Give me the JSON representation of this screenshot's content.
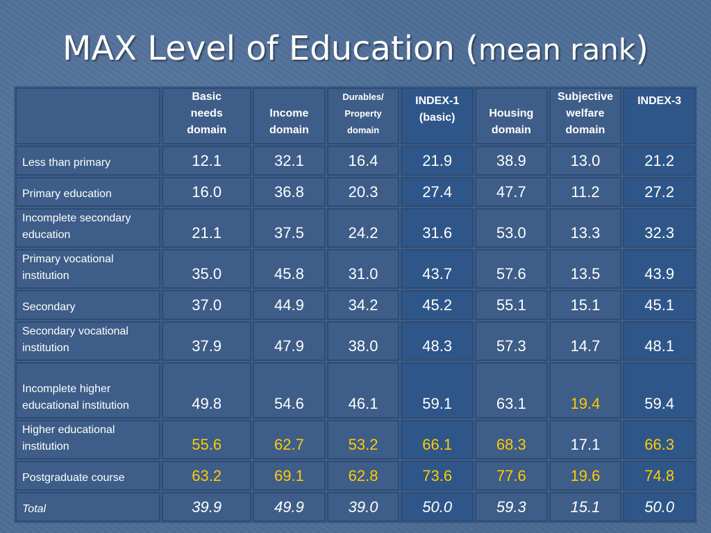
{
  "slide": {
    "title_main": "MAX Level of Education (",
    "title_sub": "mean rank",
    "title_close": ")"
  },
  "table": {
    "headers": [
      {
        "lines": [
          "Basic",
          "needs",
          "domain"
        ],
        "small": false,
        "index": false
      },
      {
        "lines": [
          "Income",
          "domain"
        ],
        "small": false,
        "index": false
      },
      {
        "lines": [
          "Durables/",
          "Property",
          "domain"
        ],
        "small": true,
        "index": false
      },
      {
        "lines": [
          "INDEX-1",
          "(basic)"
        ],
        "small": false,
        "index": true
      },
      {
        "lines": [
          "Housing",
          "domain"
        ],
        "small": false,
        "index": false
      },
      {
        "lines": [
          "Subjective",
          "welfare",
          "domain"
        ],
        "small": false,
        "index": false
      },
      {
        "lines": [
          "INDEX-3"
        ],
        "small": false,
        "index": true
      }
    ],
    "rows": [
      {
        "label": "Less than primary",
        "values": [
          "12.1",
          "32.1",
          "16.4",
          "21.9",
          "38.9",
          "13.0",
          "21.2"
        ],
        "highlight": [],
        "total": false
      },
      {
        "label": "Primary education",
        "values": [
          "16.0",
          "36.8",
          "20.3",
          "27.4",
          "47.7",
          "11.2",
          "27.2"
        ],
        "highlight": [],
        "total": false
      },
      {
        "label": "Incomplete secondary education",
        "values": [
          "21.1",
          "37.5",
          "24.2",
          "31.6",
          "53.0",
          "13.3",
          "32.3"
        ],
        "highlight": [],
        "total": false
      },
      {
        "label": "Primary vocational institution",
        "values": [
          "35.0",
          "45.8",
          "31.0",
          "43.7",
          "57.6",
          "13.5",
          "43.9"
        ],
        "highlight": [],
        "total": false
      },
      {
        "label": "Secondary",
        "values": [
          "37.0",
          "44.9",
          "34.2",
          "45.2",
          "55.1",
          "15.1",
          "45.1"
        ],
        "highlight": [],
        "total": false
      },
      {
        "label": "Secondary vocational institution",
        "values": [
          "37.9",
          "47.9",
          "38.0",
          "48.3",
          "57.3",
          "14.7",
          "48.1"
        ],
        "highlight": [],
        "total": false
      },
      {
        "label": "Incomplete higher educational institution",
        "values": [
          "49.8",
          "54.6",
          "46.1",
          "59.1",
          "63.1",
          "19.4",
          "59.4"
        ],
        "highlight": [
          5
        ],
        "total": false
      },
      {
        "label": "Higher educational institution",
        "values": [
          "55.6",
          "62.7",
          "53.2",
          "66.1",
          "68.3",
          "17.1",
          "66.3"
        ],
        "highlight": [
          0,
          1,
          2,
          3,
          4,
          6
        ],
        "total": false
      },
      {
        "label": "Postgraduate course",
        "values": [
          "63.2",
          "69.1",
          "62.8",
          "73.6",
          "77.6",
          "19.6",
          "74.8"
        ],
        "highlight": [
          0,
          1,
          2,
          3,
          4,
          5,
          6
        ],
        "total": false
      },
      {
        "label": "Total",
        "values": [
          "39.9",
          "49.9",
          "39.0",
          "50.0",
          "59.3",
          "15.1",
          "50.0"
        ],
        "highlight": [],
        "total": true
      }
    ],
    "colors": {
      "highlight": "#ffcc00",
      "text": "#ffffff",
      "index_column_bg": "#2f5689",
      "cell_bg": "#4f6f98"
    }
  }
}
